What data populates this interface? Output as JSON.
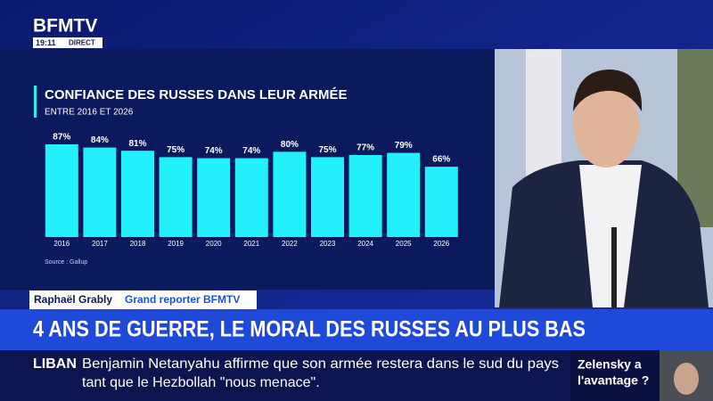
{
  "header": {
    "logo": "BFMTV",
    "time": "19:11",
    "live": "DIRECT"
  },
  "chart_data": {
    "type": "bar",
    "title": "CONFIANCE DES RUSSES DANS LEUR ARMÉE",
    "subtitle": "ENTRE 2016 ET 2026",
    "source": "Source : Gallup",
    "categories": [
      "2016",
      "2017",
      "2018",
      "2019",
      "2020",
      "2021",
      "2022",
      "2023",
      "2024",
      "2025",
      "2026"
    ],
    "values": [
      87,
      84,
      81,
      75,
      74,
      74,
      80,
      75,
      77,
      79,
      66
    ],
    "value_labels": [
      "87%",
      "84%",
      "81%",
      "75%",
      "74%",
      "74%",
      "80%",
      "75%",
      "77%",
      "79%",
      "66%"
    ],
    "color": "#22f0fa"
  },
  "lower_third": {
    "name": "Raphaël Grably",
    "role": "Grand reporter BFMTV",
    "headline": "4 ANS DE GUERRE, LE MORAL DES RUSSES AU PLUS BAS",
    "ticker_tag": "LIBAN",
    "ticker_lines": [
      "Benjamin Netanyahu affirme que son armée restera dans le sud du pays",
      "tant que le Hezbollah \"nous menace\"."
    ],
    "side_box": [
      "Zelensky a",
      "l'avantage ?"
    ]
  }
}
